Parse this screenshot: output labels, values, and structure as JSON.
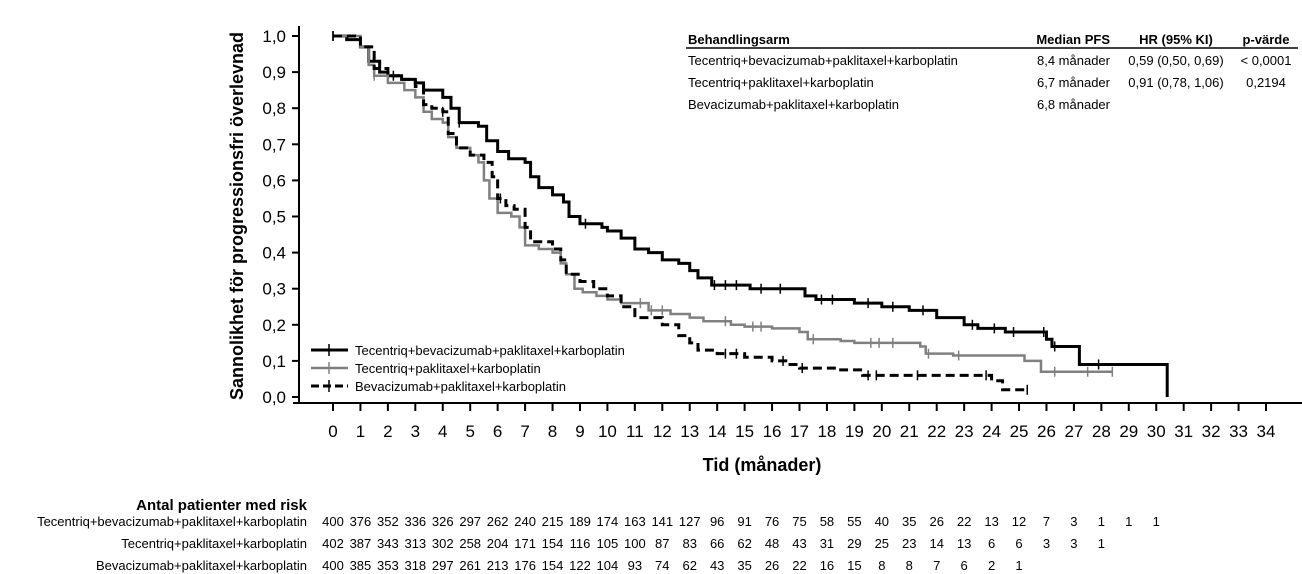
{
  "chart_data": {
    "type": "line",
    "subtype": "kaplan-meier",
    "xlabel": "Tid (månader)",
    "ylabel": "Sannolikhet för progressionsfri överlevnad",
    "xlim": [
      0,
      34
    ],
    "ylim": [
      0,
      1
    ],
    "x_ticks": [
      "0",
      "1",
      "2",
      "3",
      "4",
      "5",
      "6",
      "7",
      "8",
      "9",
      "10",
      "11",
      "12",
      "13",
      "14",
      "15",
      "16",
      "17",
      "18",
      "19",
      "20",
      "21",
      "22",
      "23",
      "24",
      "25",
      "26",
      "27",
      "28",
      "29",
      "30",
      "31",
      "32",
      "33",
      "34"
    ],
    "y_ticks": [
      "0,0",
      "0,1",
      "0,2",
      "0,3",
      "0,4",
      "0,5",
      "0,6",
      "0,7",
      "0,8",
      "0,9",
      "1,0"
    ],
    "legend_position": "bottom-left",
    "series": [
      {
        "name": "Tecentriq+bevacizumab+paklitaxel+karboplatin",
        "color": "#000000",
        "style": "solid",
        "steps": [
          [
            0,
            1.0
          ],
          [
            0.5,
            0.99
          ],
          [
            1,
            0.97
          ],
          [
            1.3,
            0.93
          ],
          [
            1.7,
            0.9
          ],
          [
            2,
            0.89
          ],
          [
            2.5,
            0.88
          ],
          [
            3,
            0.87
          ],
          [
            3.3,
            0.85
          ],
          [
            4,
            0.83
          ],
          [
            4.3,
            0.8
          ],
          [
            4.6,
            0.76
          ],
          [
            5.3,
            0.75
          ],
          [
            5.6,
            0.71
          ],
          [
            6.0,
            0.68
          ],
          [
            6.4,
            0.66
          ],
          [
            7.0,
            0.65
          ],
          [
            7.2,
            0.61
          ],
          [
            7.5,
            0.58
          ],
          [
            8.0,
            0.56
          ],
          [
            8.4,
            0.54
          ],
          [
            8.6,
            0.5
          ],
          [
            9.0,
            0.48
          ],
          [
            9.8,
            0.47
          ],
          [
            10.0,
            0.46
          ],
          [
            10.5,
            0.44
          ],
          [
            11,
            0.41
          ],
          [
            11.5,
            0.4
          ],
          [
            12,
            0.38
          ],
          [
            12.6,
            0.37
          ],
          [
            13.0,
            0.35
          ],
          [
            13.3,
            0.33
          ],
          [
            13.8,
            0.31
          ],
          [
            15.2,
            0.3
          ],
          [
            17.2,
            0.28
          ],
          [
            17.6,
            0.27
          ],
          [
            19,
            0.26
          ],
          [
            20,
            0.25
          ],
          [
            21,
            0.24
          ],
          [
            22,
            0.22
          ],
          [
            23,
            0.2
          ],
          [
            23.5,
            0.19
          ],
          [
            24.5,
            0.18
          ],
          [
            26.0,
            0.16
          ],
          [
            26.2,
            0.14
          ],
          [
            27.2,
            0.09
          ],
          [
            30.4,
            0.0
          ]
        ],
        "end": 30.4,
        "censored": [
          0,
          2,
          4.6,
          9.2,
          13.9,
          14.3,
          14.7,
          15.6,
          16.3,
          17.8,
          18.2,
          19.5,
          20.4,
          21.5,
          23.3,
          24.1,
          24.8,
          25.9,
          26.3,
          27.9
        ]
      },
      {
        "name": "Tecentriq+paklitaxel+karboplatin",
        "color": "#808080",
        "style": "solid",
        "steps": [
          [
            0,
            1.0
          ],
          [
            1,
            0.97
          ],
          [
            1.3,
            0.92
          ],
          [
            1.5,
            0.89
          ],
          [
            2,
            0.87
          ],
          [
            2.6,
            0.85
          ],
          [
            3,
            0.83
          ],
          [
            3.3,
            0.79
          ],
          [
            3.6,
            0.77
          ],
          [
            4.0,
            0.76
          ],
          [
            4.2,
            0.72
          ],
          [
            4.5,
            0.69
          ],
          [
            5.0,
            0.67
          ],
          [
            5.3,
            0.65
          ],
          [
            5.5,
            0.6
          ],
          [
            5.7,
            0.55
          ],
          [
            6.0,
            0.51
          ],
          [
            6.5,
            0.5
          ],
          [
            6.8,
            0.47
          ],
          [
            7.0,
            0.42
          ],
          [
            7.5,
            0.41
          ],
          [
            8.0,
            0.4
          ],
          [
            8.3,
            0.37
          ],
          [
            8.5,
            0.34
          ],
          [
            8.8,
            0.3
          ],
          [
            9.1,
            0.29
          ],
          [
            9.6,
            0.28
          ],
          [
            10.0,
            0.27
          ],
          [
            10.5,
            0.26
          ],
          [
            11.5,
            0.24
          ],
          [
            12.3,
            0.23
          ],
          [
            13,
            0.22
          ],
          [
            13.5,
            0.21
          ],
          [
            14.5,
            0.2
          ],
          [
            15,
            0.195
          ],
          [
            16,
            0.19
          ],
          [
            17,
            0.18
          ],
          [
            17.3,
            0.16
          ],
          [
            18.5,
            0.155
          ],
          [
            19,
            0.15
          ],
          [
            21.4,
            0.14
          ],
          [
            21.6,
            0.12
          ],
          [
            22.6,
            0.115
          ],
          [
            25.2,
            0.1
          ],
          [
            25.8,
            0.07
          ]
        ],
        "end": 28.4,
        "censored": [
          0,
          1.5,
          11.2,
          11.6,
          12.0,
          14.3,
          15.3,
          15.6,
          17.5,
          19.6,
          19.9,
          20.4,
          21.7,
          22.8,
          26.3,
          27.5,
          28.4
        ]
      },
      {
        "name": "Bevacizumab+paklitaxel+karboplatin",
        "color": "#000000",
        "style": "dashed",
        "steps": [
          [
            0,
            1.0
          ],
          [
            1,
            0.97
          ],
          [
            1.5,
            0.91
          ],
          [
            2,
            0.89
          ],
          [
            2.5,
            0.88
          ],
          [
            3.0,
            0.86
          ],
          [
            3.3,
            0.81
          ],
          [
            3.6,
            0.8
          ],
          [
            4.0,
            0.79
          ],
          [
            4.2,
            0.73
          ],
          [
            4.5,
            0.69
          ],
          [
            5.0,
            0.67
          ],
          [
            5.5,
            0.65
          ],
          [
            5.8,
            0.61
          ],
          [
            6.0,
            0.55
          ],
          [
            6.3,
            0.53
          ],
          [
            6.6,
            0.52
          ],
          [
            7.0,
            0.47
          ],
          [
            7.2,
            0.43
          ],
          [
            8.0,
            0.41
          ],
          [
            8.3,
            0.38
          ],
          [
            8.5,
            0.34
          ],
          [
            9,
            0.32
          ],
          [
            9.5,
            0.3
          ],
          [
            10,
            0.28
          ],
          [
            10.5,
            0.25
          ],
          [
            11,
            0.22
          ],
          [
            12,
            0.2
          ],
          [
            12.6,
            0.17
          ],
          [
            13.0,
            0.15
          ],
          [
            13.3,
            0.13
          ],
          [
            14,
            0.12
          ],
          [
            15,
            0.11
          ],
          [
            16,
            0.1
          ],
          [
            16.5,
            0.09
          ],
          [
            17,
            0.08
          ],
          [
            18.5,
            0.075
          ],
          [
            19.3,
            0.06
          ],
          [
            23.6,
            0.06
          ],
          [
            24,
            0.045
          ],
          [
            24.4,
            0.02
          ]
        ],
        "end": 25.3,
        "censored": [
          0,
          2.2,
          4.0,
          6.1,
          14.3,
          14.7,
          16.4,
          17.1,
          19.5,
          19.8,
          21.3,
          23.8,
          25.3
        ]
      }
    ]
  },
  "summary_table": {
    "headers": [
      "Behandlingsarm",
      "Median PFS",
      "HR (95% KI)",
      "p-värde"
    ],
    "rows": [
      {
        "arm": "Tecentriq+bevacizumab+paklitaxel+karboplatin",
        "median": "8,4 månader",
        "hr": "0,59 (0,50, 0,69)",
        "p": "< 0,0001"
      },
      {
        "arm": "Tecentriq+paklitaxel+karboplatin",
        "median": "6,7 månader",
        "hr": "0,91 (0,78, 1,06)",
        "p": "0,2194"
      },
      {
        "arm": "Bevacizumab+paklitaxel+karboplatin",
        "median": "6,8 månader",
        "hr": "",
        "p": ""
      }
    ]
  },
  "risk_table": {
    "title": "Antal patienter med risk",
    "rows": [
      {
        "label": "Tecentriq+bevacizumab+paklitaxel+karboplatin",
        "values": [
          "400",
          "376",
          "352",
          "336",
          "326",
          "297",
          "262",
          "240",
          "215",
          "189",
          "174",
          "163",
          "141",
          "127",
          "96",
          "91",
          "76",
          "75",
          "58",
          "55",
          "40",
          "35",
          "26",
          "22",
          "13",
          "12",
          "7",
          "3",
          "1",
          "1",
          "1"
        ]
      },
      {
        "label": "Tecentriq+paklitaxel+karboplatin",
        "values": [
          "402",
          "387",
          "343",
          "313",
          "302",
          "258",
          "204",
          "171",
          "154",
          "116",
          "105",
          "100",
          "87",
          "83",
          "66",
          "62",
          "48",
          "43",
          "31",
          "29",
          "25",
          "23",
          "14",
          "13",
          "6",
          "6",
          "3",
          "3",
          "1"
        ]
      },
      {
        "label": "Bevacizumab+paklitaxel+karboplatin",
        "values": [
          "400",
          "385",
          "353",
          "318",
          "297",
          "261",
          "213",
          "176",
          "154",
          "122",
          "104",
          "93",
          "74",
          "62",
          "43",
          "35",
          "26",
          "22",
          "16",
          "15",
          "8",
          "8",
          "7",
          "6",
          "2",
          "1"
        ]
      }
    ]
  }
}
